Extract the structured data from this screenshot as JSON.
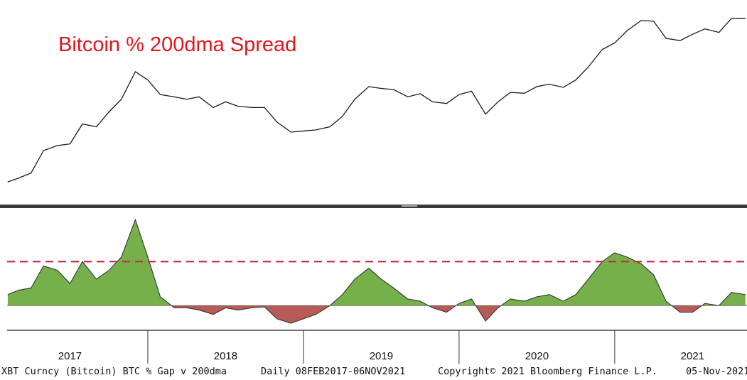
{
  "chart_data": [
    {
      "type": "line",
      "title": "Bitcoin % 200dma Spread",
      "log_scale": true,
      "color": "#1a1a1a",
      "xlim": [
        2017.096,
        2021.85
      ],
      "ylim": [
        900,
        68000
      ],
      "x": [
        2017.1,
        2017.17,
        2017.25,
        2017.33,
        2017.42,
        2017.5,
        2017.58,
        2017.67,
        2017.75,
        2017.83,
        2017.92,
        2018.0,
        2018.08,
        2018.17,
        2018.25,
        2018.33,
        2018.42,
        2018.5,
        2018.58,
        2018.67,
        2018.75,
        2018.83,
        2018.92,
        2019.0,
        2019.08,
        2019.17,
        2019.25,
        2019.33,
        2019.42,
        2019.5,
        2019.58,
        2019.67,
        2019.75,
        2019.83,
        2019.92,
        2020.0,
        2020.08,
        2020.17,
        2020.25,
        2020.33,
        2020.42,
        2020.5,
        2020.58,
        2020.67,
        2020.75,
        2020.83,
        2020.92,
        2021.0,
        2021.08,
        2021.17,
        2021.25,
        2021.33,
        2021.42,
        2021.5,
        2021.58,
        2021.67,
        2021.75,
        2021.84
      ],
      "values": [
        1000,
        1100,
        1250,
        2200,
        2500,
        2600,
        4300,
        4000,
        5800,
        8000,
        16000,
        13000,
        9000,
        8500,
        8000,
        8500,
        6500,
        7500,
        6700,
        6500,
        6500,
        4500,
        3500,
        3600,
        3700,
        4000,
        5200,
        8000,
        11000,
        10500,
        10200,
        8500,
        9200,
        7500,
        7200,
        9000,
        9800,
        5500,
        7500,
        9500,
        9300,
        11000,
        11700,
        10800,
        13000,
        18000,
        28000,
        33000,
        45000,
        58000,
        57000,
        37000,
        35000,
        41000,
        47000,
        43000,
        61000,
        61000
      ]
    },
    {
      "type": "area",
      "threshold": 100,
      "threshold_color": "#c0304a",
      "color_above": "#76b04a",
      "color_below": "#b85a55",
      "line_color": "#333333",
      "xlim": [
        2017.096,
        2021.85
      ],
      "ylim": [
        -56,
        210
      ],
      "xticks": [
        {
          "value": 2017.5,
          "label": "2017"
        },
        {
          "value": 2018.5,
          "label": "2018"
        },
        {
          "value": 2019.5,
          "label": "2019"
        },
        {
          "value": 2020.5,
          "label": "2020"
        },
        {
          "value": 2021.5,
          "label": "2021"
        }
      ],
      "xboundaries": [
        2018,
        2019,
        2020,
        2021
      ],
      "x": [
        2017.1,
        2017.17,
        2017.25,
        2017.33,
        2017.42,
        2017.5,
        2017.58,
        2017.67,
        2017.75,
        2017.83,
        2017.92,
        2018.0,
        2018.08,
        2018.17,
        2018.25,
        2018.33,
        2018.42,
        2018.5,
        2018.58,
        2018.67,
        2018.75,
        2018.83,
        2018.92,
        2019.0,
        2019.08,
        2019.17,
        2019.25,
        2019.33,
        2019.42,
        2019.5,
        2019.58,
        2019.67,
        2019.75,
        2019.83,
        2019.92,
        2020.0,
        2020.08,
        2020.17,
        2020.25,
        2020.33,
        2020.42,
        2020.5,
        2020.58,
        2020.67,
        2020.75,
        2020.83,
        2020.92,
        2021.0,
        2021.08,
        2021.17,
        2021.25,
        2021.33,
        2021.42,
        2021.5,
        2021.58,
        2021.67,
        2021.75,
        2021.84
      ],
      "values": [
        25,
        35,
        40,
        90,
        80,
        50,
        100,
        60,
        80,
        110,
        195,
        110,
        20,
        -5,
        -5,
        -10,
        -20,
        -5,
        -10,
        -5,
        -3,
        -30,
        -40,
        -30,
        -20,
        0,
        25,
        60,
        85,
        60,
        40,
        15,
        10,
        -5,
        -15,
        5,
        15,
        -35,
        -5,
        15,
        10,
        20,
        25,
        10,
        25,
        60,
        100,
        120,
        110,
        95,
        70,
        10,
        -15,
        -15,
        5,
        0,
        30,
        25
      ]
    }
  ],
  "footer": [
    "XBT Curncy (Bitcoin) BTC % Gap v 200dma",
    "Daily 08FEB2017-06NOV2021",
    "Copyright© 2021 Bloomberg Finance L.P.",
    "05-Nov-2021"
  ]
}
